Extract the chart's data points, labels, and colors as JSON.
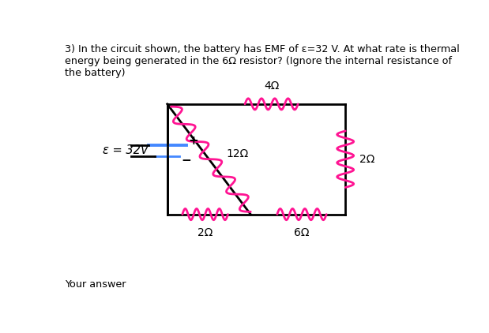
{
  "title_text": "3) In the circuit shown, the battery has EMF of ε=32 V. At what rate is thermal\nenergy being generated in the 6Ω resistor? (Ignore the internal resistance of\nthe battery)",
  "footer_text": "Your answer",
  "emf_label": "ε = 32V",
  "resistor_color": "#FF1493",
  "wire_color": "#000000",
  "battery_color": "#4488FF",
  "bg_color": "#FFFFFF",
  "res_top_label": "4Ω",
  "res_right_label": "2Ω",
  "res_bot_left_label": "2Ω",
  "res_bot_right_label": "6Ω",
  "res_mid_label": "12Ω",
  "CL": 0.28,
  "CR": 0.75,
  "CT": 0.75,
  "CB": 0.32,
  "CM": 0.5
}
